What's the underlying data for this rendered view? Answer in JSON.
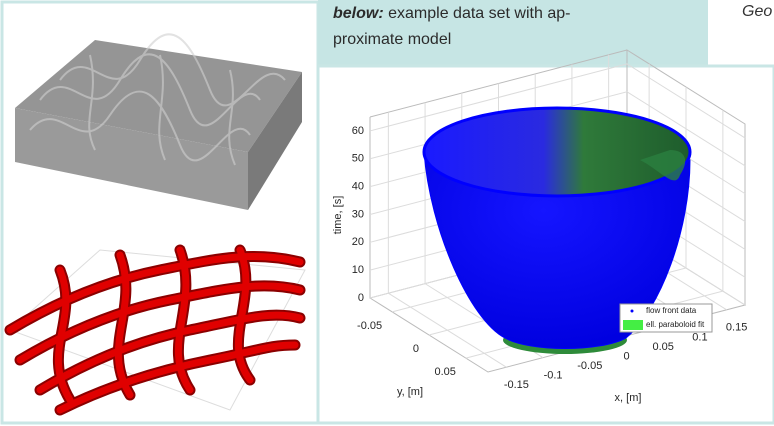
{
  "header": {
    "title_fragment": "Geo"
  },
  "caption": {
    "lead": "below:",
    "lines": [
      "example data set with ap-",
      "proximate model"
    ]
  },
  "chart_data": {
    "type": "surface3d",
    "zlabel": "time, [s]",
    "ylabel": "y, [m]",
    "xlabel": "x, [m]",
    "zlim": [
      0,
      65
    ],
    "zticks": [
      0,
      10,
      20,
      30,
      40,
      50,
      60
    ],
    "ylim": [
      -0.08,
      0.08
    ],
    "yticks": [
      -0.05,
      0,
      0.05
    ],
    "xlim": [
      -0.175,
      0.175
    ],
    "xticks": [
      -0.15,
      -0.1,
      -0.05,
      0,
      0.05,
      0.1,
      0.15
    ],
    "grid": true,
    "legend_position": "lower right",
    "series": [
      {
        "name": "flow front data",
        "color": "#0000ff"
      },
      {
        "name": "ell. paraboloid fit",
        "color": "#44ee44"
      }
    ]
  }
}
